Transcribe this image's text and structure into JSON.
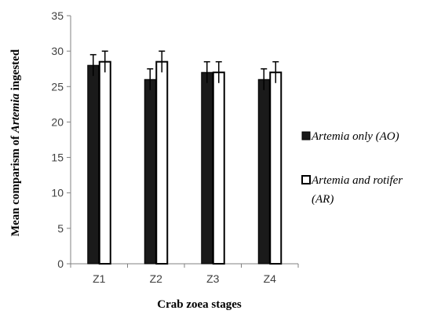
{
  "chart_data": {
    "type": "bar",
    "categories": [
      "Z1",
      "Z2",
      "Z3",
      "Z4"
    ],
    "series": [
      {
        "name": "Artemia only (AO)",
        "values": [
          28,
          26,
          27,
          26
        ],
        "errors": [
          1.5,
          1.5,
          1.5,
          1.5
        ],
        "color": "#1a1a1a"
      },
      {
        "name": "Artemia and rotifer (AR)",
        "values": [
          28.5,
          28.5,
          27,
          27
        ],
        "errors": [
          1.5,
          1.5,
          1.5,
          1.5
        ],
        "color": "#ffffff"
      }
    ],
    "legend_lines": [
      [
        "Artemia only (AO)"
      ],
      [
        "Artemia and rotifer",
        "(AR)"
      ]
    ],
    "xlabel": "Crab zoea stages",
    "ylabel_parts": [
      "Mean comparism of ",
      "Artemia",
      " ingested"
    ],
    "ylim": [
      0,
      35
    ],
    "yticks": [
      0,
      5,
      10,
      15,
      20,
      25,
      30,
      35
    ],
    "grid": false,
    "legend_position": "right"
  }
}
